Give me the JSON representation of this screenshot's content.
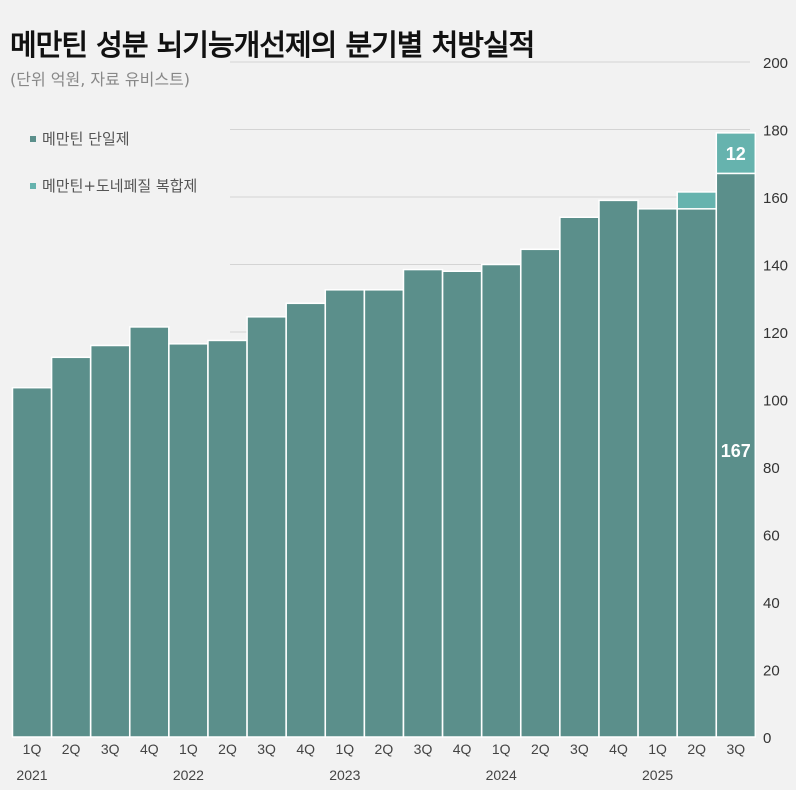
{
  "chart_data": {
    "type": "bar",
    "stacked": true,
    "title": "메만틴 성분 뇌기능개선제의 분기별 처방실적",
    "subtitle": "(단위 억원, 자료 유비스트)",
    "categories": [
      "1Q",
      "2Q",
      "3Q",
      "4Q",
      "1Q",
      "2Q",
      "3Q",
      "4Q",
      "1Q",
      "2Q",
      "3Q",
      "4Q",
      "1Q",
      "2Q",
      "3Q",
      "4Q",
      "1Q",
      "2Q",
      "3Q"
    ],
    "years": [
      {
        "label": "2021",
        "index": 0
      },
      {
        "label": "2022",
        "index": 4
      },
      {
        "label": "2023",
        "index": 8
      },
      {
        "label": "2024",
        "index": 12
      },
      {
        "label": "2025",
        "index": 16
      }
    ],
    "series": [
      {
        "name": "메만틴 단일제",
        "color": "#5b8f8b",
        "values": [
          103.5,
          112.5,
          116,
          121.5,
          116.5,
          117.5,
          124.5,
          128.5,
          132.5,
          132.5,
          138.5,
          138,
          140,
          144.5,
          154,
          159,
          156.5,
          156.5,
          167
        ]
      },
      {
        "name": "메만틴+도네페질 복합제",
        "color": "#66b3ae",
        "values": [
          0,
          0,
          0,
          0,
          0,
          0,
          0,
          0,
          0,
          0,
          0,
          0,
          0,
          0,
          0,
          0,
          0,
          5,
          12
        ]
      }
    ],
    "data_labels": [
      {
        "series": 0,
        "index": 18,
        "text": "167"
      },
      {
        "series": 1,
        "index": 18,
        "text": "12"
      }
    ],
    "ylim": [
      0,
      200
    ],
    "yticks": [
      0,
      20,
      40,
      60,
      80,
      100,
      120,
      140,
      160,
      180,
      200
    ],
    "grid": true,
    "legend_position": "top-left",
    "xlabel": "",
    "ylabel": ""
  }
}
